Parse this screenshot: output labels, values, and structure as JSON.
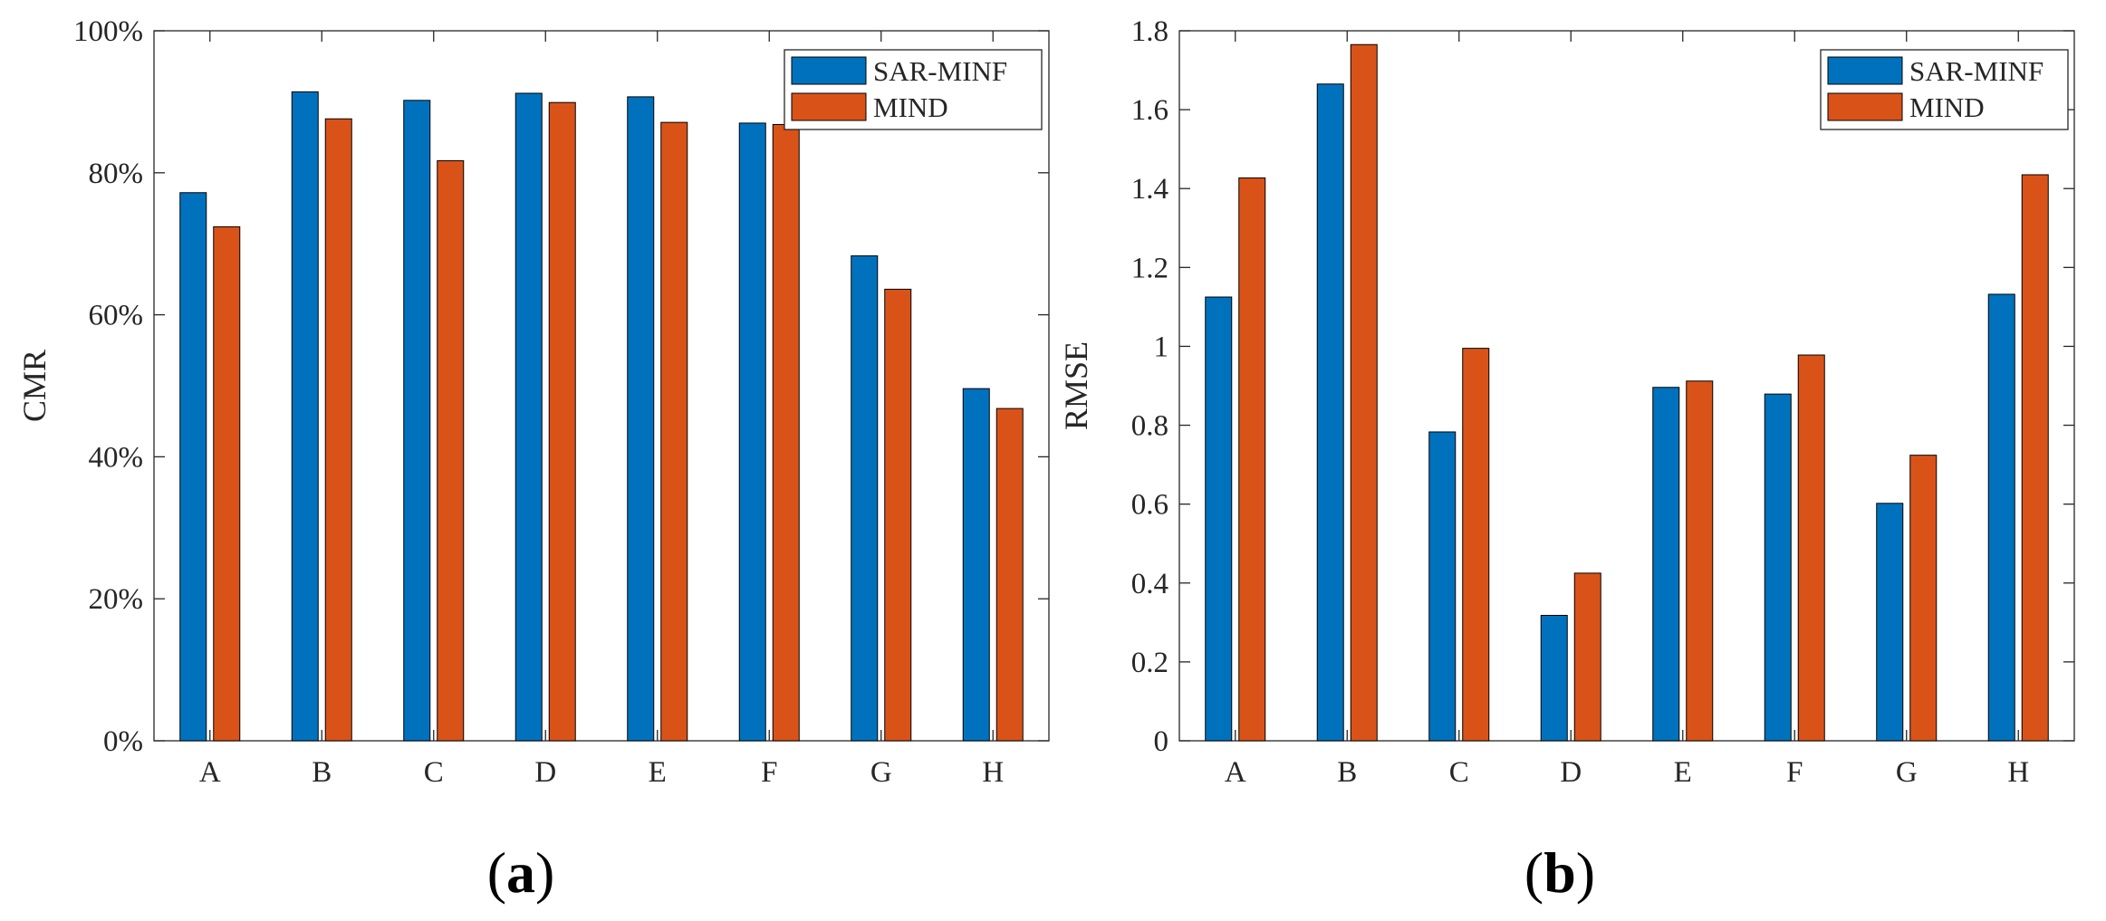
{
  "colors": {
    "series_1": "#0072BD",
    "series_2": "#D95319",
    "axis": "#262626",
    "background": "#FFFFFF"
  },
  "panel_labels": [
    {
      "open": "(",
      "letter": "a",
      "close": ")"
    },
    {
      "open": "(",
      "letter": "b",
      "close": ")"
    }
  ],
  "chart_data": [
    {
      "type": "bar",
      "title": "",
      "xlabel": "",
      "ylabel": "CMR",
      "categories": [
        "A",
        "B",
        "C",
        "D",
        "E",
        "F",
        "G",
        "H"
      ],
      "ylim": [
        0,
        100
      ],
      "yticks": [
        0,
        20,
        40,
        60,
        80,
        100
      ],
      "ytick_labels": [
        "0%",
        "20%",
        "40%",
        "60%",
        "80%",
        "100%"
      ],
      "legend_position": "top-right",
      "series": [
        {
          "name": "SAR-MINF",
          "values": [
            77.2,
            91.4,
            90.2,
            91.2,
            90.7,
            87.0,
            68.3,
            49.6
          ]
        },
        {
          "name": "MIND",
          "values": [
            72.4,
            87.6,
            81.7,
            89.9,
            87.1,
            86.8,
            63.6,
            46.8
          ]
        }
      ]
    },
    {
      "type": "bar",
      "title": "",
      "xlabel": "",
      "ylabel": "RMSE",
      "categories": [
        "A",
        "B",
        "C",
        "D",
        "E",
        "F",
        "G",
        "H"
      ],
      "ylim": [
        0,
        1.8
      ],
      "yticks": [
        0,
        0.2,
        0.4,
        0.6,
        0.8,
        1.0,
        1.2,
        1.4,
        1.6,
        1.8
      ],
      "ytick_labels": [
        "0",
        "0.2",
        "0.4",
        "0.6",
        "0.8",
        "1",
        "1.2",
        "1.4",
        "1.6",
        "1.8"
      ],
      "legend_position": "top-right",
      "series": [
        {
          "name": "SAR-MINF",
          "values": [
            1.125,
            1.665,
            0.783,
            0.318,
            0.896,
            0.879,
            0.602,
            1.132
          ]
        },
        {
          "name": "MIND",
          "values": [
            1.427,
            1.765,
            0.995,
            0.425,
            0.912,
            0.978,
            0.724,
            1.435
          ]
        }
      ]
    }
  ]
}
